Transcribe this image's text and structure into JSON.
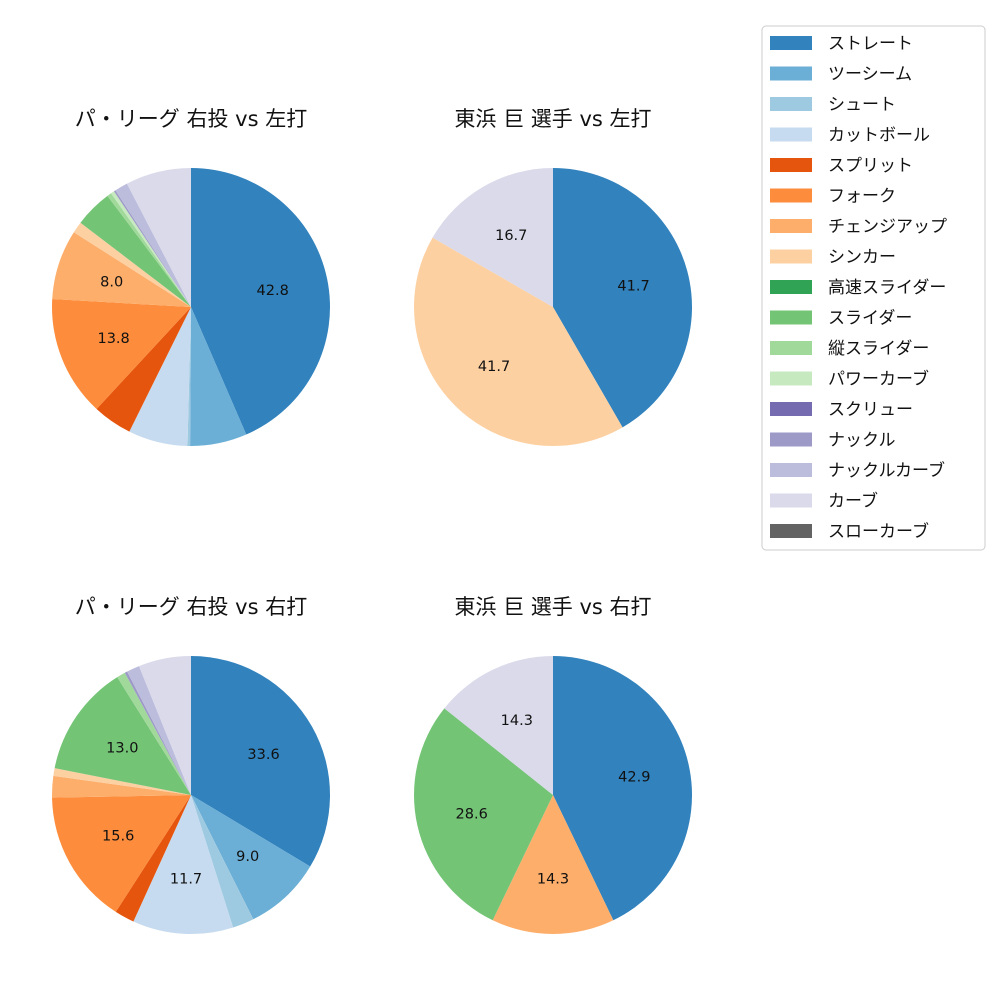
{
  "legend": {
    "placement": "top-right",
    "items": [
      {
        "label": "ストレート",
        "color": "#3182bd"
      },
      {
        "label": "ツーシーム",
        "color": "#6baed6"
      },
      {
        "label": "シュート",
        "color": "#9ecae1"
      },
      {
        "label": "カットボール",
        "color": "#c6dbef"
      },
      {
        "label": "スプリット",
        "color": "#e6550d"
      },
      {
        "label": "フォーク",
        "color": "#fd8d3c"
      },
      {
        "label": "チェンジアップ",
        "color": "#fdae6b"
      },
      {
        "label": "シンカー",
        "color": "#fdd0a2"
      },
      {
        "label": "高速スライダー",
        "color": "#31a354"
      },
      {
        "label": "スライダー",
        "color": "#74c476"
      },
      {
        "label": "縦スライダー",
        "color": "#a1d99b"
      },
      {
        "label": "パワーカーブ",
        "color": "#c7e9c0"
      },
      {
        "label": "スクリュー",
        "color": "#756bb1"
      },
      {
        "label": "ナックル",
        "color": "#9e9ac8"
      },
      {
        "label": "ナックルカーブ",
        "color": "#bcbddc"
      },
      {
        "label": "カーブ",
        "color": "#dadaeb"
      },
      {
        "label": "スローカーブ",
        "color": "#636363"
      }
    ]
  },
  "chart_data": [
    {
      "type": "pie",
      "title": "パ・リーグ 右投 vs 左打",
      "slices": [
        {
          "label": "ストレート",
          "value": 42.8,
          "shown": "42.8"
        },
        {
          "label": "ツーシーム",
          "value": 6.5,
          "shown": ""
        },
        {
          "label": "シュート",
          "value": 0.3,
          "shown": ""
        },
        {
          "label": "カットボール",
          "value": 6.8,
          "shown": ""
        },
        {
          "label": "スプリット",
          "value": 4.5,
          "shown": ""
        },
        {
          "label": "フォーク",
          "value": 13.8,
          "shown": "13.8"
        },
        {
          "label": "チェンジアップ",
          "value": 8.0,
          "shown": "8.0"
        },
        {
          "label": "シンカー",
          "value": 1.3,
          "shown": ""
        },
        {
          "label": "スライダー",
          "value": 4.3,
          "shown": ""
        },
        {
          "label": "縦スライダー",
          "value": 0.5,
          "shown": ""
        },
        {
          "label": "パワーカーブ",
          "value": 0.4,
          "shown": ""
        },
        {
          "label": "ナックル",
          "value": 0.2,
          "shown": ""
        },
        {
          "label": "ナックルカーブ",
          "value": 1.5,
          "shown": ""
        },
        {
          "label": "カーブ",
          "value": 7.5,
          "shown": ""
        }
      ]
    },
    {
      "type": "pie",
      "title": "東浜 巨 選手 vs 左打",
      "slices": [
        {
          "label": "ストレート",
          "value": 41.7,
          "shown": "41.7"
        },
        {
          "label": "シンカー",
          "value": 41.7,
          "shown": "41.7"
        },
        {
          "label": "カーブ",
          "value": 16.7,
          "shown": "16.7"
        }
      ]
    },
    {
      "type": "pie",
      "title": "パ・リーグ 右投 vs 右打",
      "slices": [
        {
          "label": "ストレート",
          "value": 33.6,
          "shown": "33.6"
        },
        {
          "label": "ツーシーム",
          "value": 9.0,
          "shown": "9.0"
        },
        {
          "label": "シュート",
          "value": 2.5,
          "shown": ""
        },
        {
          "label": "カットボール",
          "value": 11.7,
          "shown": "11.7"
        },
        {
          "label": "スプリット",
          "value": 2.3,
          "shown": ""
        },
        {
          "label": "フォーク",
          "value": 15.6,
          "shown": "15.6"
        },
        {
          "label": "チェンジアップ",
          "value": 2.5,
          "shown": ""
        },
        {
          "label": "シンカー",
          "value": 0.9,
          "shown": ""
        },
        {
          "label": "スライダー",
          "value": 13.0,
          "shown": "13.0"
        },
        {
          "label": "縦スライダー",
          "value": 1.0,
          "shown": ""
        },
        {
          "label": "ナックル",
          "value": 0.3,
          "shown": ""
        },
        {
          "label": "ナックルカーブ",
          "value": 1.5,
          "shown": ""
        },
        {
          "label": "カーブ",
          "value": 6.1,
          "shown": ""
        }
      ]
    },
    {
      "type": "pie",
      "title": "東浜 巨 選手 vs 右打",
      "slices": [
        {
          "label": "ストレート",
          "value": 42.9,
          "shown": "42.9"
        },
        {
          "label": "チェンジアップ",
          "value": 14.3,
          "shown": "14.3"
        },
        {
          "label": "スライダー",
          "value": 28.6,
          "shown": "28.6"
        },
        {
          "label": "カーブ",
          "value": 14.3,
          "shown": "14.3"
        }
      ]
    }
  ]
}
